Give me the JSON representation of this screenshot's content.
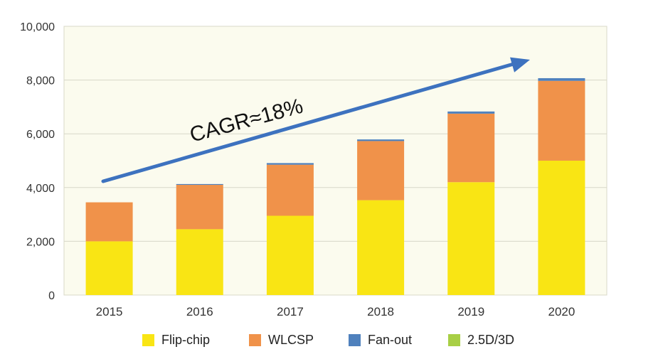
{
  "chart_data": {
    "type": "bar",
    "stacked": true,
    "categories": [
      "2015",
      "2016",
      "2017",
      "2018",
      "2019",
      "2020"
    ],
    "series": [
      {
        "name": "Flip-chip",
        "color": "#f9e514",
        "values": [
          2000,
          2450,
          2950,
          3530,
          4200,
          5000
        ]
      },
      {
        "name": "WLCSP",
        "color": "#f0924a",
        "values": [
          1450,
          1650,
          1900,
          2200,
          2550,
          2970
        ]
      },
      {
        "name": "Fan-out",
        "color": "#4f81bd",
        "values": [
          0,
          30,
          60,
          60,
          80,
          100
        ]
      },
      {
        "name": "2.5D/3D",
        "color": "#a8cf45",
        "values": [
          0,
          0,
          0,
          0,
          0,
          0
        ]
      }
    ],
    "yticks": [
      "10,000",
      "8,000",
      "6,000",
      "4,000",
      "2,000",
      "0"
    ],
    "ylim": [
      0,
      10000
    ],
    "ystep": 2000,
    "annotation": "CAGR≈18%",
    "grid": true,
    "legend_position": "bottom",
    "plot_background": "#fbfbee",
    "grid_color": "#d8d8c8",
    "arrow_color": "#3d72bf"
  }
}
